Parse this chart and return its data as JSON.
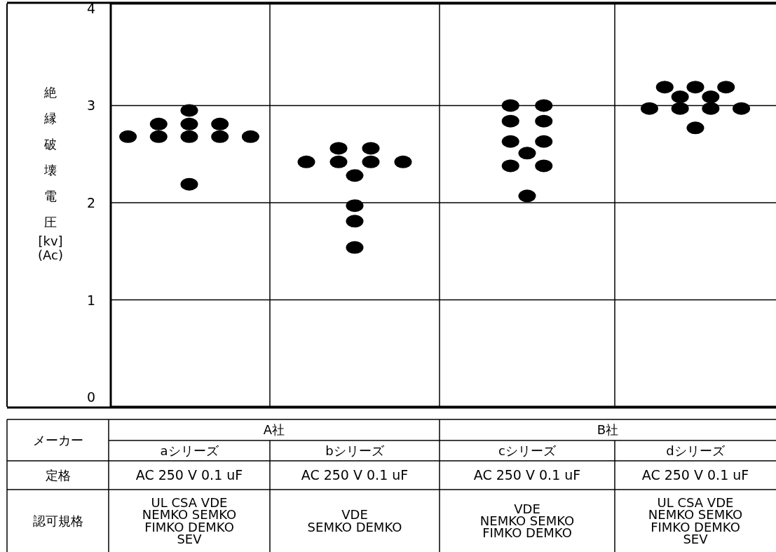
{
  "chart_data": {
    "type": "scatter",
    "ylabel": "絶縁破壊電圧 [kv] (Ac)",
    "categories": [
      "aシリーズ",
      "bシリーズ",
      "cシリーズ",
      "dシリーズ"
    ],
    "ylim": [
      -0.1,
      4.05
    ],
    "yticks": [
      0,
      1,
      2,
      3,
      4
    ],
    "grid": true,
    "marker": "circle",
    "series": [
      {
        "color": "#000000",
        "x": [
          "aシリーズ",
          "aシリーズ",
          "aシリーズ",
          "aシリーズ",
          "aシリーズ",
          "aシリーズ",
          "aシリーズ",
          "aシリーズ",
          "aシリーズ",
          "aシリーズ",
          "bシリーズ",
          "bシリーズ",
          "bシリーズ",
          "bシリーズ",
          "bシリーズ",
          "bシリーズ",
          "bシリーズ",
          "bシリーズ",
          "bシリーズ",
          "bシリーズ",
          "cシリーズ",
          "cシリーズ",
          "cシリーズ",
          "cシリーズ",
          "cシリーズ",
          "cシリーズ",
          "cシリーズ",
          "cシリーズ",
          "cシリーズ",
          "cシリーズ",
          "dシリーズ",
          "dシリーズ",
          "dシリーズ",
          "dシリーズ",
          "dシリーズ",
          "dシリーズ",
          "dシリーズ",
          "dシリーズ",
          "dシリーズ",
          "dシリーズ"
        ],
        "values": [
          2.95,
          2.81,
          2.81,
          2.81,
          2.68,
          2.68,
          2.68,
          2.68,
          2.68,
          2.19,
          2.56,
          2.56,
          2.42,
          2.42,
          2.42,
          2.42,
          2.28,
          1.97,
          1.81,
          1.54,
          3.0,
          3.0,
          2.84,
          2.84,
          2.63,
          2.63,
          2.51,
          2.38,
          2.38,
          2.07,
          3.19,
          3.19,
          3.19,
          3.09,
          3.09,
          2.97,
          2.97,
          2.97,
          2.97,
          2.77
        ]
      }
    ],
    "annotations": [
      "メーカー",
      "A社",
      "B社",
      "定格",
      "AC 250 V   0.1 uF",
      "AC 250 V   0.1 uF",
      "AC 250 V   0.1 uF",
      "AC 250 V   0.1 uF",
      "認可規格",
      "UL  CSA  VDE\nNEMKO  SEMKO\nFIMKO  DEMKO\nSEV",
      "VDE\nSEMKO  DEMKO",
      "VDE\nNEMKO  SEMKO\nFIMKO  DEMKO",
      "UL  CSA  VDE\nNEMKO  SEMKO\nFIMKO  DEMKO\nSEV"
    ]
  }
}
